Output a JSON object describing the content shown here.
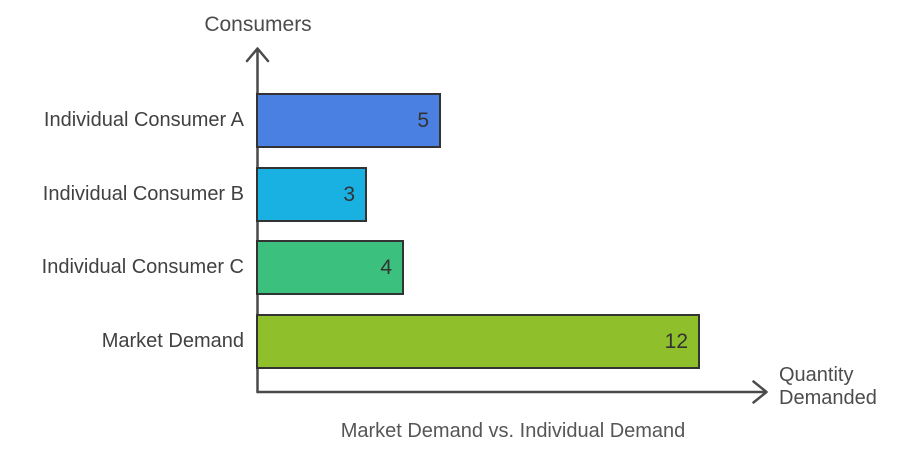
{
  "chart_data": {
    "type": "bar",
    "orientation": "horizontal",
    "title": "Market Demand vs. Individual Demand",
    "y_axis_label": "Consumers",
    "x_axis_label": "Quantity Demanded",
    "categories": [
      "Individual Consumer A",
      "Individual Consumer B",
      "Individual Consumer C",
      "Market Demand"
    ],
    "values": [
      5,
      3,
      4,
      12
    ],
    "data_labels": [
      "5",
      "3",
      "4",
      "12"
    ],
    "bar_colors": [
      "#4a80e2",
      "#18b1e1",
      "#3bc07d",
      "#90bf2c"
    ],
    "bar_border_color": "#333333",
    "axis_color": "#4a4a4a",
    "label_text_color": "#414141",
    "value_text_color": "#333333",
    "xlim": [
      0,
      12
    ],
    "grid": false,
    "legend": false,
    "ticks_shown": false
  }
}
